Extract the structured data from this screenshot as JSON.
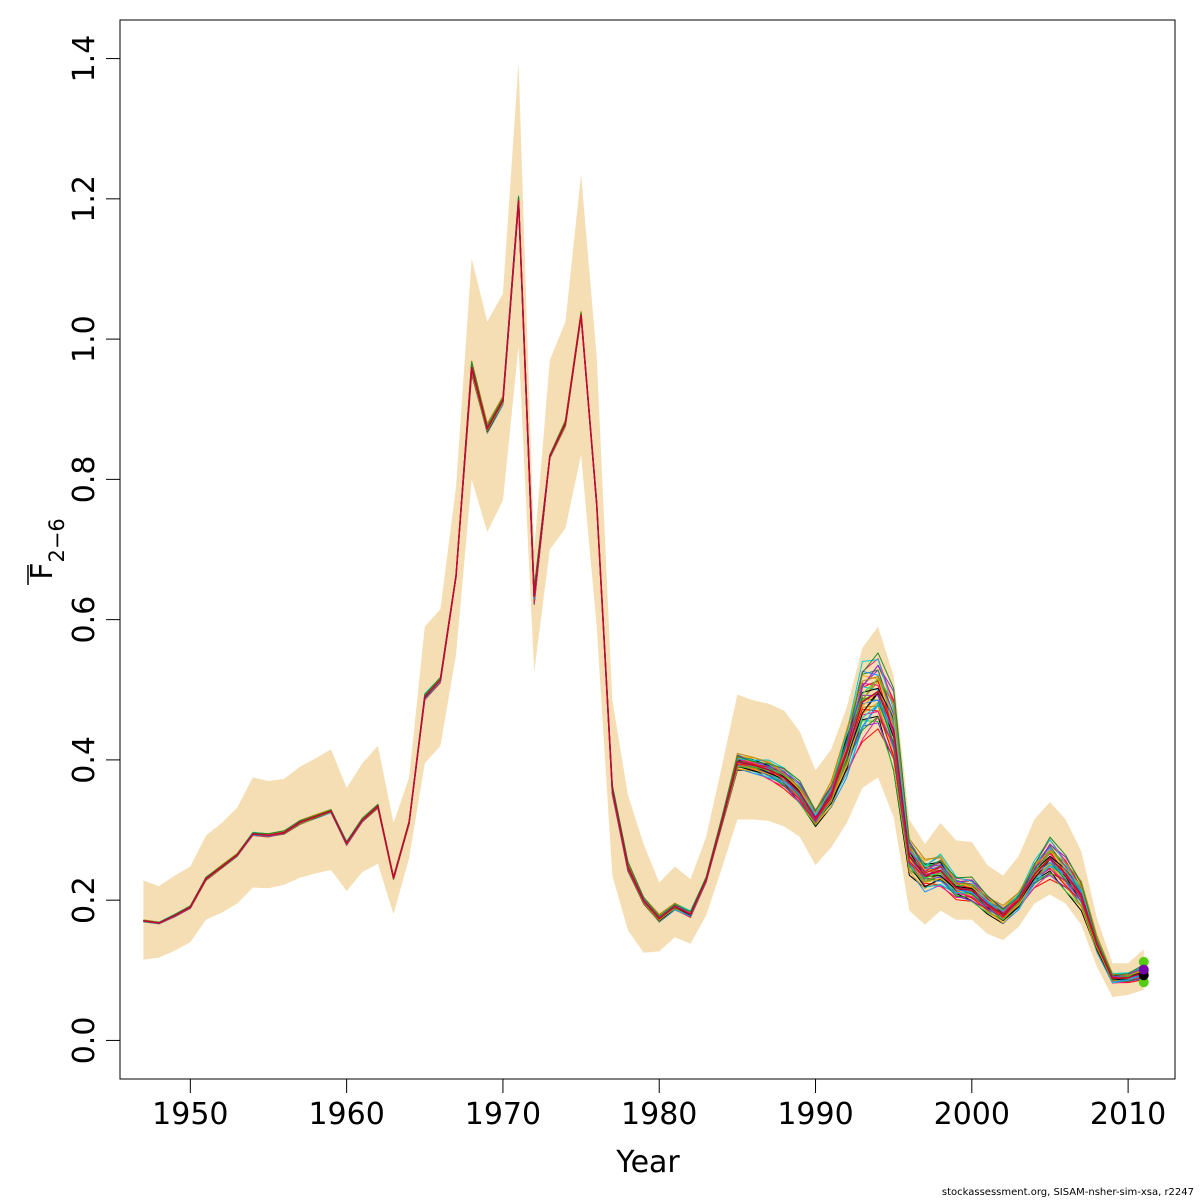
{
  "credit": "stockassessment.org, SISAM-nsher-sim-xsa, r2247",
  "chart_data": {
    "type": "line",
    "title": "",
    "xlabel": "Year",
    "ylabel_main": "F",
    "ylabel_sub": "2−6",
    "xlim": [
      1945.5,
      2013
    ],
    "ylim": [
      -0.055,
      1.455
    ],
    "xticks": [
      1950,
      1960,
      1970,
      1980,
      1990,
      2000,
      2010
    ],
    "yticks": [
      "0.0",
      "0.2",
      "0.4",
      "0.6",
      "0.8",
      "1.0",
      "1.2",
      "1.4"
    ],
    "grid": false,
    "band_color": "#f5deb3",
    "line_colors": [
      "#000000",
      "#ff0000",
      "#1e90ff",
      "#32cd32",
      "#ff1493",
      "#ffa500",
      "#8a2be2",
      "#00ced1",
      "#b8860b",
      "#228b22"
    ],
    "x": [
      1947,
      1948,
      1949,
      1950,
      1951,
      1952,
      1953,
      1954,
      1955,
      1956,
      1957,
      1958,
      1959,
      1960,
      1961,
      1962,
      1963,
      1964,
      1965,
      1966,
      1967,
      1968,
      1969,
      1970,
      1971,
      1972,
      1973,
      1974,
      1975,
      1976,
      1977,
      1978,
      1979,
      1980,
      1981,
      1982,
      1983,
      1984,
      1985,
      1986,
      1987,
      1988,
      1989,
      1990,
      1991,
      1992,
      1993,
      1994,
      1995,
      1996,
      1997,
      1998,
      1999,
      2000,
      2001,
      2002,
      2003,
      2004,
      2005,
      2006,
      2007,
      2008,
      2009,
      2010,
      2011
    ],
    "band_upper": [
      0.228,
      0.22,
      0.235,
      0.248,
      0.292,
      0.31,
      0.332,
      0.375,
      0.37,
      0.373,
      0.39,
      0.402,
      0.415,
      0.36,
      0.395,
      0.42,
      0.31,
      0.375,
      0.59,
      0.615,
      0.79,
      1.115,
      1.025,
      1.065,
      1.395,
      0.7,
      0.97,
      1.025,
      1.235,
      0.975,
      0.485,
      0.35,
      0.28,
      0.225,
      0.248,
      0.23,
      0.29,
      0.39,
      0.493,
      0.485,
      0.48,
      0.47,
      0.44,
      0.385,
      0.415,
      0.475,
      0.56,
      0.59,
      0.52,
      0.315,
      0.28,
      0.31,
      0.285,
      0.283,
      0.25,
      0.235,
      0.263,
      0.315,
      0.34,
      0.315,
      0.27,
      0.175,
      0.11,
      0.11,
      0.13
    ],
    "band_lower": [
      0.115,
      0.118,
      0.128,
      0.14,
      0.172,
      0.182,
      0.195,
      0.218,
      0.217,
      0.222,
      0.232,
      0.238,
      0.243,
      0.213,
      0.24,
      0.252,
      0.18,
      0.26,
      0.395,
      0.42,
      0.55,
      0.8,
      0.725,
      0.77,
      0.99,
      0.525,
      0.7,
      0.73,
      0.835,
      0.59,
      0.235,
      0.157,
      0.125,
      0.127,
      0.147,
      0.138,
      0.178,
      0.245,
      0.315,
      0.315,
      0.313,
      0.305,
      0.29,
      0.25,
      0.275,
      0.31,
      0.36,
      0.375,
      0.318,
      0.185,
      0.165,
      0.185,
      0.172,
      0.172,
      0.152,
      0.143,
      0.162,
      0.195,
      0.208,
      0.195,
      0.165,
      0.105,
      0.062,
      0.065,
      0.072
    ],
    "series_min": [
      0.169,
      0.166,
      0.176,
      0.188,
      0.228,
      0.245,
      0.262,
      0.292,
      0.29,
      0.294,
      0.308,
      0.316,
      0.324,
      0.278,
      0.311,
      0.331,
      0.229,
      0.308,
      0.485,
      0.51,
      0.66,
      0.95,
      0.865,
      0.905,
      1.19,
      0.62,
      0.83,
      0.875,
      1.03,
      0.76,
      0.35,
      0.24,
      0.195,
      0.168,
      0.185,
      0.175,
      0.225,
      0.305,
      0.385,
      0.38,
      0.37,
      0.358,
      0.335,
      0.305,
      0.33,
      0.37,
      0.42,
      0.44,
      0.38,
      0.235,
      0.21,
      0.215,
      0.2,
      0.195,
      0.18,
      0.165,
      0.185,
      0.215,
      0.228,
      0.21,
      0.185,
      0.125,
      0.08,
      0.082,
      0.085
    ],
    "series_max": [
      0.172,
      0.169,
      0.18,
      0.192,
      0.233,
      0.25,
      0.267,
      0.297,
      0.295,
      0.299,
      0.314,
      0.322,
      0.33,
      0.284,
      0.317,
      0.337,
      0.234,
      0.314,
      0.495,
      0.518,
      0.665,
      0.97,
      0.88,
      0.92,
      1.205,
      0.645,
      0.835,
      0.885,
      1.04,
      0.77,
      0.365,
      0.255,
      0.205,
      0.18,
      0.197,
      0.185,
      0.233,
      0.318,
      0.41,
      0.405,
      0.402,
      0.39,
      0.37,
      0.33,
      0.37,
      0.45,
      0.545,
      0.555,
      0.505,
      0.29,
      0.26,
      0.27,
      0.235,
      0.233,
      0.208,
      0.193,
      0.213,
      0.258,
      0.292,
      0.265,
      0.23,
      0.15,
      0.097,
      0.097,
      0.108
    ],
    "series_count": 40,
    "final_points": [
      {
        "x": 2011,
        "y": 0.112,
        "color": "#55cc11"
      },
      {
        "x": 2011,
        "y": 0.083,
        "color": "#55cc11"
      },
      {
        "x": 2011,
        "y": 0.098,
        "color": "#55cc11"
      },
      {
        "x": 2011,
        "y": 0.093,
        "color": "#000000"
      },
      {
        "x": 2011,
        "y": 0.101,
        "color": "#7700aa"
      }
    ]
  }
}
